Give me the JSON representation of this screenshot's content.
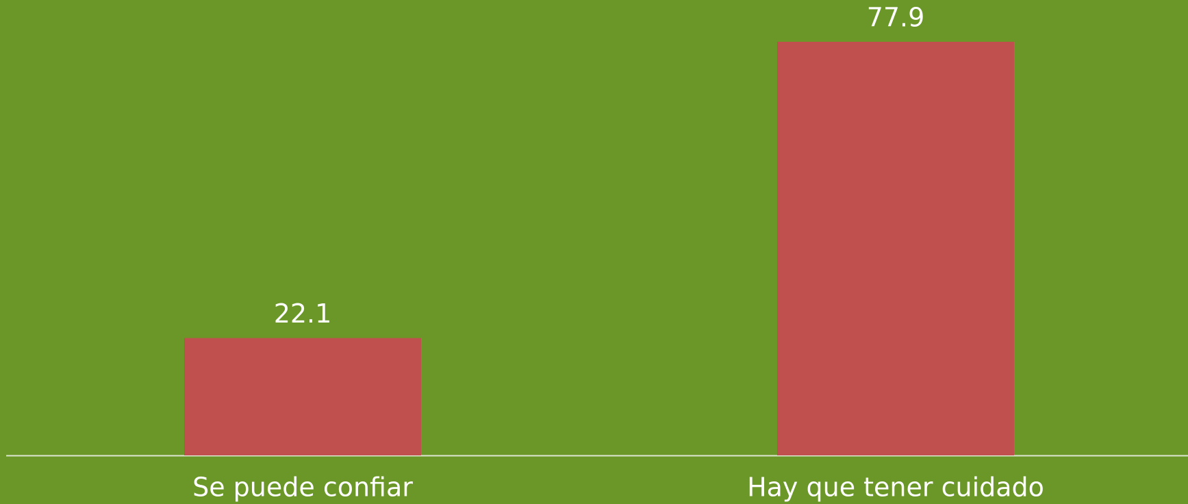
{
  "chart_data": {
    "type": "bar",
    "categories": [
      "Se puede confiar",
      "Hay que tener cuidado"
    ],
    "values": [
      22.1,
      77.9
    ],
    "color": "#c0504d",
    "background": "#6a9727"
  }
}
